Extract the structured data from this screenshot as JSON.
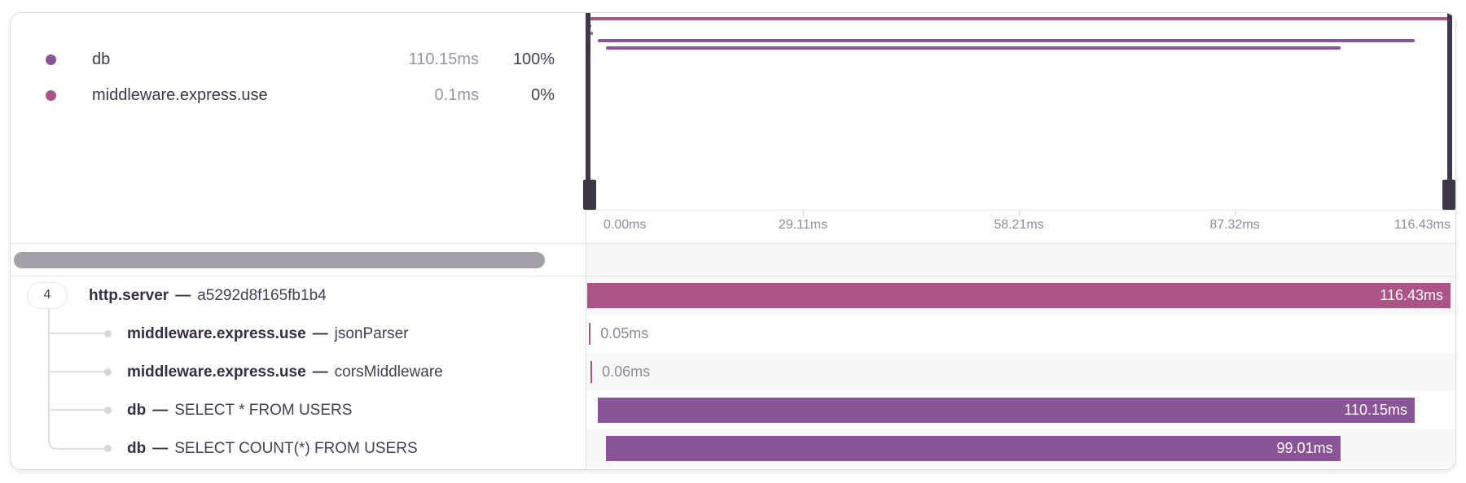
{
  "legend": {
    "items": [
      {
        "label": "db",
        "duration": "110.15ms",
        "percent": "100%",
        "color": "#8a5496"
      },
      {
        "label": "middleware.express.use",
        "duration": "0.1ms",
        "percent": "0%",
        "color": "#ad5486"
      }
    ]
  },
  "axis": {
    "ticks": [
      "0.00ms",
      "29.11ms",
      "58.21ms",
      "87.32ms",
      "116.43ms"
    ]
  },
  "trace": {
    "total_ms": 116.43,
    "separator": "—",
    "rows": [
      {
        "badge": "4",
        "op": "http.server",
        "description": "a5292d8f165fb1b4",
        "duration_label": "116.43ms",
        "start_ms": 0,
        "duration_ms": 116.43,
        "color": "#ad5486",
        "label_inside": true
      },
      {
        "op": "middleware.express.use",
        "description": "jsonParser",
        "duration_label": "0.05ms",
        "start_ms": 0.25,
        "duration_ms": 0.05,
        "color": "#ad5486",
        "label_inside": false
      },
      {
        "op": "middleware.express.use",
        "description": "corsMiddleware",
        "duration_label": "0.06ms",
        "start_ms": 0.45,
        "duration_ms": 0.06,
        "color": "#ad5486",
        "label_inside": false
      },
      {
        "op": "db",
        "description": "SELECT * FROM USERS",
        "duration_label": "110.15ms",
        "start_ms": 1.45,
        "duration_ms": 110.15,
        "color": "#8a5496",
        "label_inside": true
      },
      {
        "op": "db",
        "description": "SELECT COUNT(*) FROM USERS",
        "duration_label": "99.01ms",
        "start_ms": 2.55,
        "duration_ms": 99.01,
        "color": "#8a5496",
        "label_inside": true
      }
    ]
  }
}
